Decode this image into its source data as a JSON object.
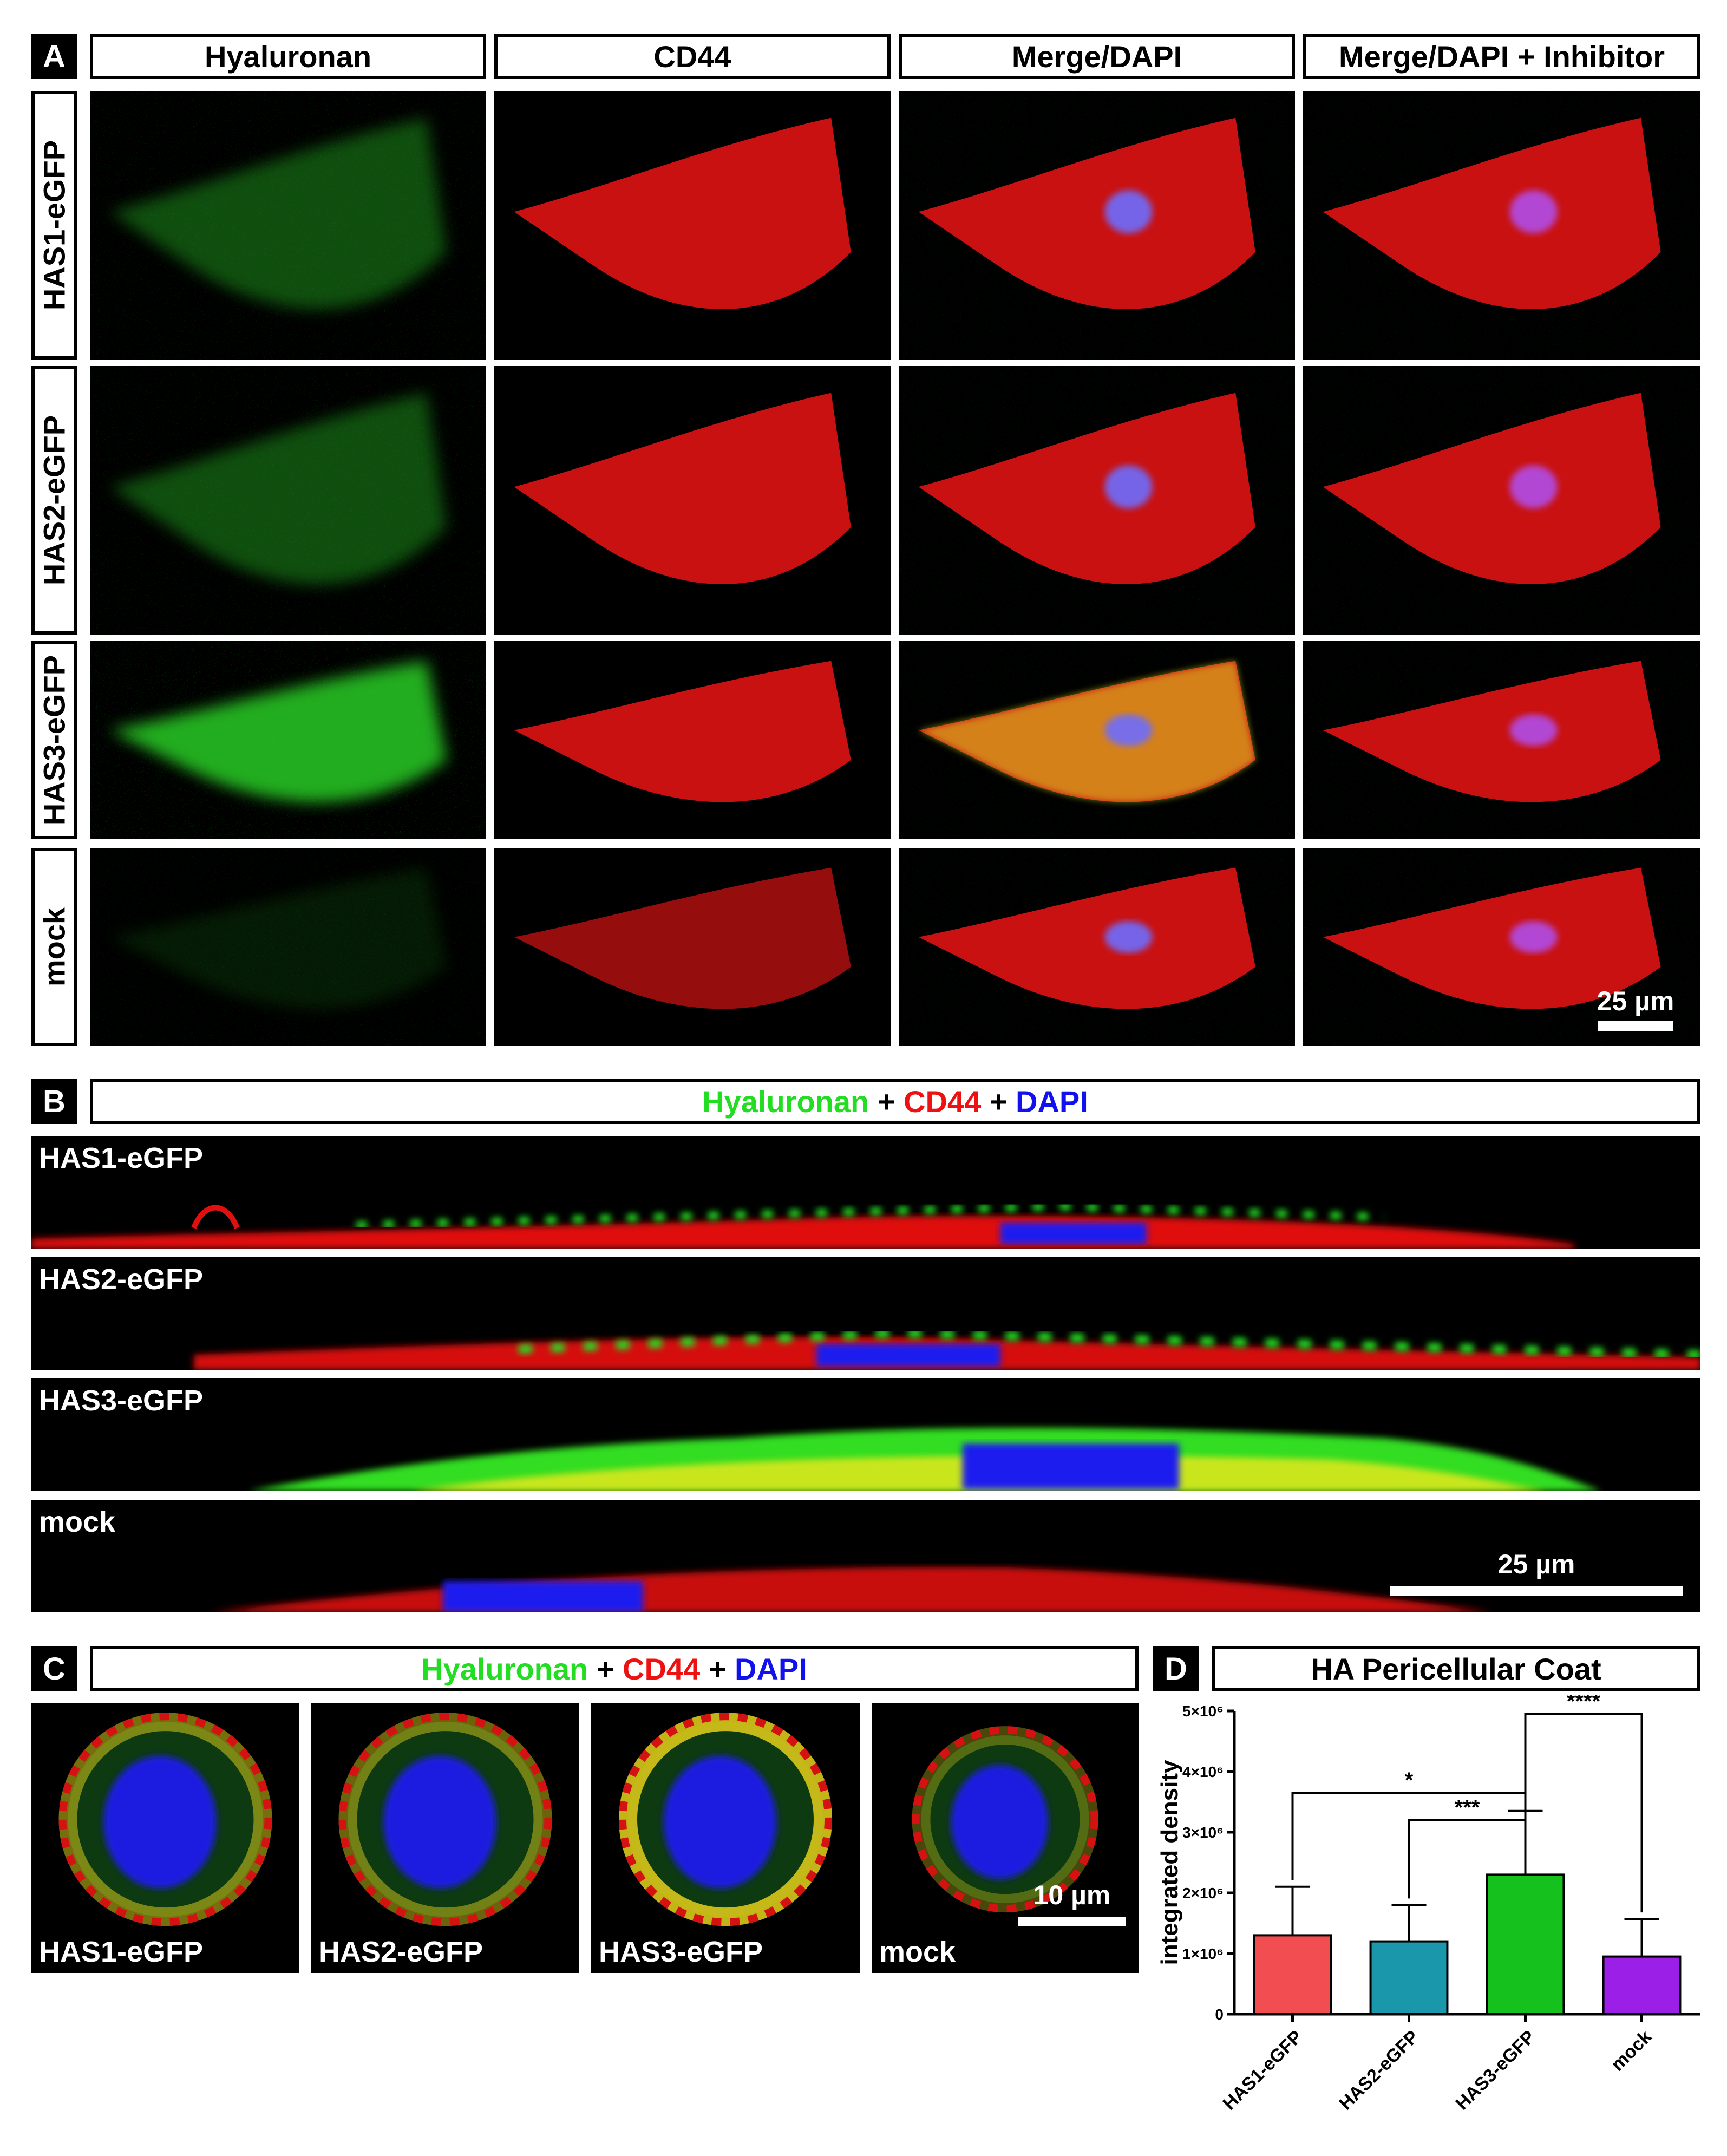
{
  "panel_letters": {
    "a": "A",
    "b": "B",
    "c": "C",
    "d": "D"
  },
  "panel_a": {
    "columns": [
      "Hyaluronan",
      "CD44",
      "Merge/DAPI",
      "Merge/DAPI + Inhibitor"
    ],
    "rows": [
      "HAS1-eGFP",
      "HAS2-eGFP",
      "HAS3-eGFP",
      "mock"
    ],
    "scale_bar": "25 µm"
  },
  "panel_b": {
    "legend": {
      "hyaluronan": "Hyaluronan",
      "plus1": "+",
      "cd44": "CD44",
      "plus2": "+",
      "dapi": "DAPI"
    },
    "rows": [
      "HAS1-eGFP",
      "HAS2-eGFP",
      "HAS3-eGFP",
      "mock"
    ],
    "scale_bar": "25 µm"
  },
  "panel_c": {
    "legend": {
      "hyaluronan": "Hyaluronan",
      "plus1": "+",
      "cd44": "CD44",
      "plus2": "+",
      "dapi": "DAPI"
    },
    "labels": [
      "HAS1-eGFP",
      "HAS2-eGFP",
      "HAS3-eGFP",
      "mock"
    ],
    "scale_bar": "10 µm"
  },
  "colors": {
    "hyaluronan": "#22dd22",
    "cd44": "#ee1111",
    "dapi": "#1111ee"
  },
  "chart_data": {
    "type": "bar",
    "title": "HA Pericellular Coat",
    "ylabel": "integrated density",
    "xlabel": "",
    "categories": [
      "HAS1-eGFP",
      "HAS2-eGFP",
      "HAS3-eGFP",
      "mock"
    ],
    "values": [
      1300000,
      1200000,
      2300000,
      950000
    ],
    "errors": [
      800000,
      600000,
      1050000,
      620000
    ],
    "colors": [
      "#f24d50",
      "#1a97ab",
      "#15c11c",
      "#9b1fe6"
    ],
    "ylim": [
      0,
      5000000
    ],
    "yticks": [
      0,
      1000000,
      2000000,
      3000000,
      4000000,
      5000000
    ],
    "ytick_labels": [
      "0",
      "1×10⁶",
      "2×10⁶",
      "3×10⁶",
      "4×10⁶",
      "5×10⁶"
    ],
    "significance": [
      {
        "from": "HAS1-eGFP",
        "to": "HAS3-eGFP",
        "label": "*"
      },
      {
        "from": "HAS2-eGFP",
        "to": "HAS3-eGFP",
        "label": "***"
      },
      {
        "from": "HAS3-eGFP",
        "to": "mock",
        "label": "****"
      }
    ]
  }
}
